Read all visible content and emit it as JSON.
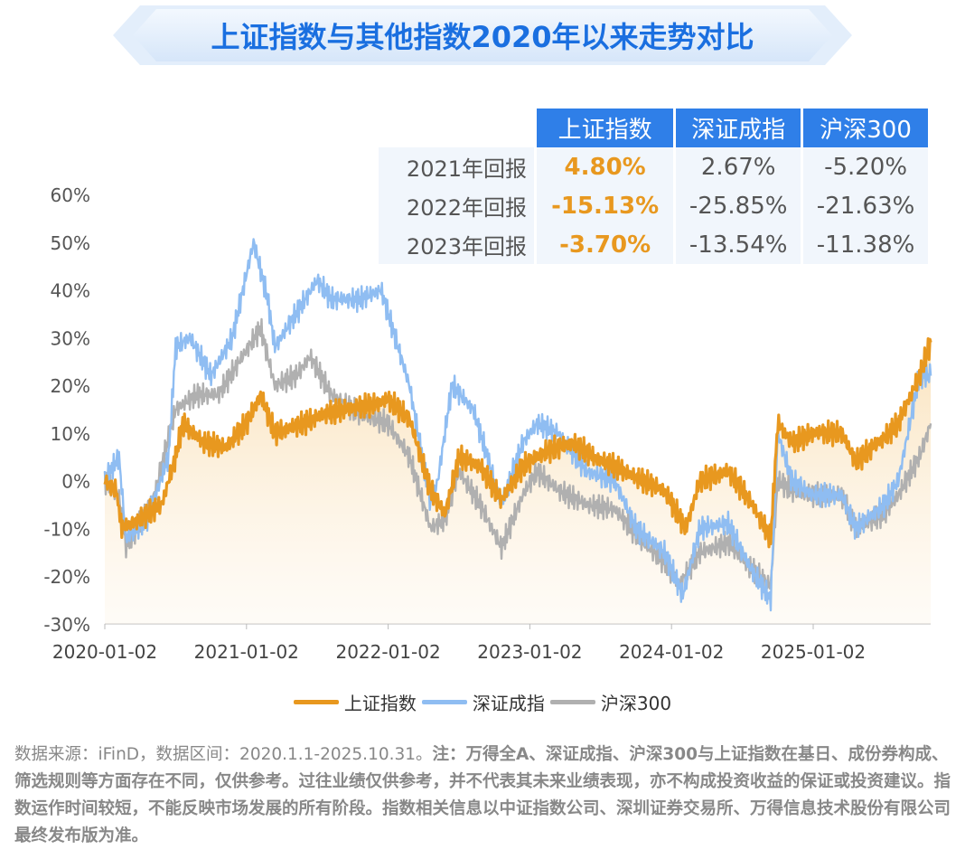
{
  "title": "上证指数与其他指数2020年以来走势对比",
  "table": {
    "headers": [
      "上证指数",
      "深证成指",
      "沪深300"
    ],
    "rows": [
      {
        "label": "2021年回报",
        "values": [
          "4.80%",
          "2.67%",
          "-5.20%"
        ]
      },
      {
        "label": "2022年回报",
        "values": [
          "-15.13%",
          "-25.85%",
          "-21.63%"
        ]
      },
      {
        "label": "2023年回报",
        "values": [
          "-3.70%",
          "-13.54%",
          "-11.38%"
        ]
      }
    ]
  },
  "note": {
    "source": "数据来源：iFinD，数据区间：2020.1.1-2025.10.31。",
    "bold": "注：",
    "text": "万得全A、深证成指、沪深300与上证指数在基日、成份券构成、筛选规则等方面存在不同，仅供参考。过往业绩仅供参考，并不代表其未来业绩表现，亦不构成投资收益的保证或投资建议。指数运作时间较短，不能反映市场发展的所有阶段。指数相关信息以中证指数公司、深圳证券交易所、万得信息技术股份有限公司最终发布版为准。"
  },
  "chart_data": {
    "type": "line",
    "title": "上证指数与其他指数2020年以来走势对比",
    "xlabel": "",
    "ylabel": "",
    "ylim": [
      -30,
      60
    ],
    "yticks": [
      "-30%",
      "-20%",
      "-10%",
      "0%",
      "10%",
      "20%",
      "30%",
      "40%",
      "50%",
      "60%"
    ],
    "xticks": [
      "2020-01-02",
      "2021-01-02",
      "2022-01-02",
      "2023-01-02",
      "2024-01-02",
      "2025-01-02"
    ],
    "xrange": [
      2020.0,
      2025.83
    ],
    "legend": "bottom",
    "series": [
      {
        "name": "上证指数",
        "color": "#e8981f",
        "points": [
          [
            2020,
            0
          ],
          [
            2020.08,
            -2
          ],
          [
            2020.12,
            -10
          ],
          [
            2020.25,
            -8
          ],
          [
            2020.4,
            -5
          ],
          [
            2020.5,
            5
          ],
          [
            2020.55,
            12
          ],
          [
            2020.7,
            8
          ],
          [
            2020.85,
            7
          ],
          [
            2021,
            12
          ],
          [
            2021.1,
            18
          ],
          [
            2021.2,
            10
          ],
          [
            2021.4,
            12
          ],
          [
            2021.55,
            14
          ],
          [
            2021.7,
            15
          ],
          [
            2021.9,
            16
          ],
          [
            2022,
            17
          ],
          [
            2022.15,
            13
          ],
          [
            2022.3,
            -2
          ],
          [
            2022.4,
            -7
          ],
          [
            2022.5,
            5
          ],
          [
            2022.65,
            3
          ],
          [
            2022.8,
            -4
          ],
          [
            2022.95,
            3
          ],
          [
            2023.1,
            6
          ],
          [
            2023.3,
            8
          ],
          [
            2023.45,
            5
          ],
          [
            2023.6,
            3
          ],
          [
            2023.8,
            0
          ],
          [
            2023.95,
            -2
          ],
          [
            2024.1,
            -10
          ],
          [
            2024.2,
            0
          ],
          [
            2024.4,
            2
          ],
          [
            2024.55,
            -4
          ],
          [
            2024.7,
            -12
          ],
          [
            2024.75,
            12
          ],
          [
            2024.85,
            8
          ],
          [
            2025,
            10
          ],
          [
            2025.2,
            10
          ],
          [
            2025.3,
            4
          ],
          [
            2025.5,
            9
          ],
          [
            2025.6,
            12
          ],
          [
            2025.75,
            22
          ],
          [
            2025.83,
            29
          ]
        ]
      },
      {
        "name": "深证成指",
        "color": "#8fbdf2",
        "points": [
          [
            2020,
            0
          ],
          [
            2020.1,
            5
          ],
          [
            2020.15,
            -12
          ],
          [
            2020.3,
            -8
          ],
          [
            2020.45,
            5
          ],
          [
            2020.5,
            28
          ],
          [
            2020.6,
            30
          ],
          [
            2020.75,
            22
          ],
          [
            2020.9,
            30
          ],
          [
            2021.05,
            50
          ],
          [
            2021.15,
            38
          ],
          [
            2021.2,
            28
          ],
          [
            2021.35,
            35
          ],
          [
            2021.5,
            42
          ],
          [
            2021.6,
            38
          ],
          [
            2021.8,
            38
          ],
          [
            2021.95,
            40
          ],
          [
            2022.05,
            30
          ],
          [
            2022.15,
            20
          ],
          [
            2022.3,
            -5
          ],
          [
            2022.35,
            0
          ],
          [
            2022.45,
            20
          ],
          [
            2022.6,
            15
          ],
          [
            2022.8,
            -5
          ],
          [
            2022.95,
            8
          ],
          [
            2023.05,
            12
          ],
          [
            2023.2,
            10
          ],
          [
            2023.4,
            2
          ],
          [
            2023.6,
            0
          ],
          [
            2023.75,
            -10
          ],
          [
            2023.95,
            -15
          ],
          [
            2024.08,
            -24
          ],
          [
            2024.2,
            -10
          ],
          [
            2024.4,
            -9
          ],
          [
            2024.55,
            -18
          ],
          [
            2024.7,
            -25
          ],
          [
            2024.75,
            10
          ],
          [
            2024.85,
            0
          ],
          [
            2025,
            -3
          ],
          [
            2025.2,
            -3
          ],
          [
            2025.3,
            -10
          ],
          [
            2025.5,
            -5
          ],
          [
            2025.6,
            0
          ],
          [
            2025.75,
            22
          ],
          [
            2025.83,
            22
          ]
        ]
      },
      {
        "name": "沪深300",
        "color": "#b0b0b0",
        "points": [
          [
            2020,
            0
          ],
          [
            2020.1,
            -3
          ],
          [
            2020.15,
            -14
          ],
          [
            2020.35,
            -3
          ],
          [
            2020.5,
            15
          ],
          [
            2020.65,
            18
          ],
          [
            2020.8,
            18
          ],
          [
            2020.95,
            25
          ],
          [
            2021.1,
            32
          ],
          [
            2021.2,
            20
          ],
          [
            2021.35,
            22
          ],
          [
            2021.45,
            26
          ],
          [
            2021.6,
            18
          ],
          [
            2021.8,
            14
          ],
          [
            2022,
            12
          ],
          [
            2022.15,
            5
          ],
          [
            2022.3,
            -10
          ],
          [
            2022.4,
            -8
          ],
          [
            2022.5,
            2
          ],
          [
            2022.65,
            -5
          ],
          [
            2022.8,
            -14
          ],
          [
            2022.95,
            -3
          ],
          [
            2023.05,
            2
          ],
          [
            2023.2,
            -2
          ],
          [
            2023.4,
            -5
          ],
          [
            2023.6,
            -6
          ],
          [
            2023.8,
            -13
          ],
          [
            2023.95,
            -17
          ],
          [
            2024.05,
            -22
          ],
          [
            2024.2,
            -15
          ],
          [
            2024.4,
            -13
          ],
          [
            2024.55,
            -18
          ],
          [
            2024.7,
            -22
          ],
          [
            2024.75,
            0
          ],
          [
            2024.85,
            -2
          ],
          [
            2025,
            -3
          ],
          [
            2025.2,
            -3
          ],
          [
            2025.3,
            -10
          ],
          [
            2025.5,
            -7
          ],
          [
            2025.6,
            -3
          ],
          [
            2025.75,
            5
          ],
          [
            2025.83,
            12
          ]
        ]
      }
    ]
  }
}
